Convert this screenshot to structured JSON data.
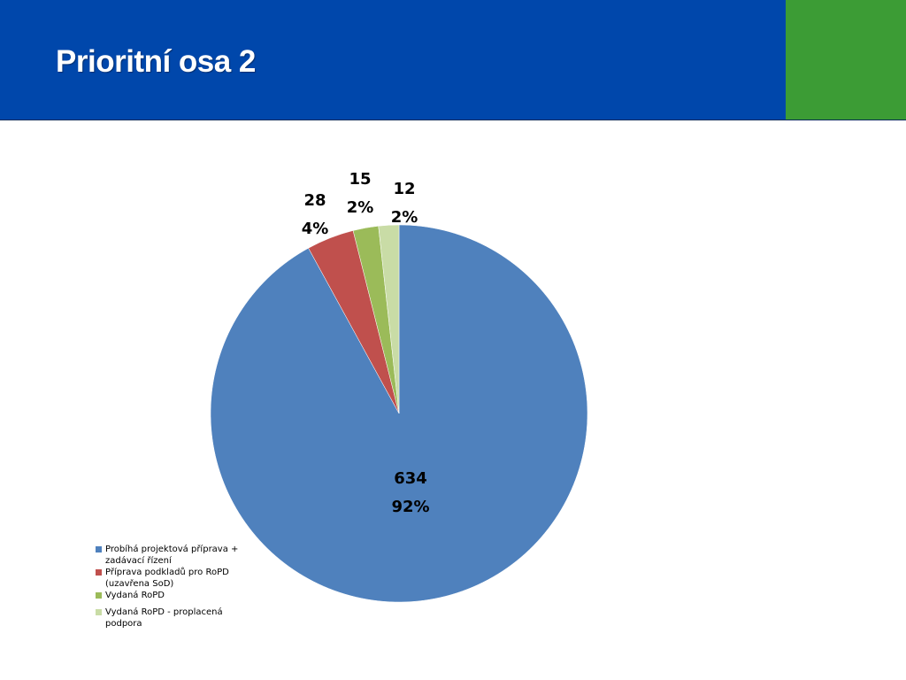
{
  "slide": {
    "title": "Prioritní osa 2",
    "colors": {
      "header": "#0047ab",
      "accent": "#3c9c35"
    }
  },
  "chart_data": {
    "type": "pie",
    "title": "",
    "categories": [
      "Probíhá projektová příprava + zadávací řízení",
      "Příprava podkladů pro RoPD (uzavřena SoD)",
      "Vydaná RoPD",
      "Vydaná RoPD - proplacená podpora"
    ],
    "values": [
      634,
      28,
      15,
      12
    ],
    "percent_labels": [
      "92%",
      "4%",
      "2%",
      "2%"
    ],
    "colors": [
      "#4f81bd",
      "#c0504d",
      "#9bbb59",
      "#c9dca6"
    ],
    "start_angle": "12 o'clock, clockwise",
    "legend_position": "bottom-left"
  }
}
